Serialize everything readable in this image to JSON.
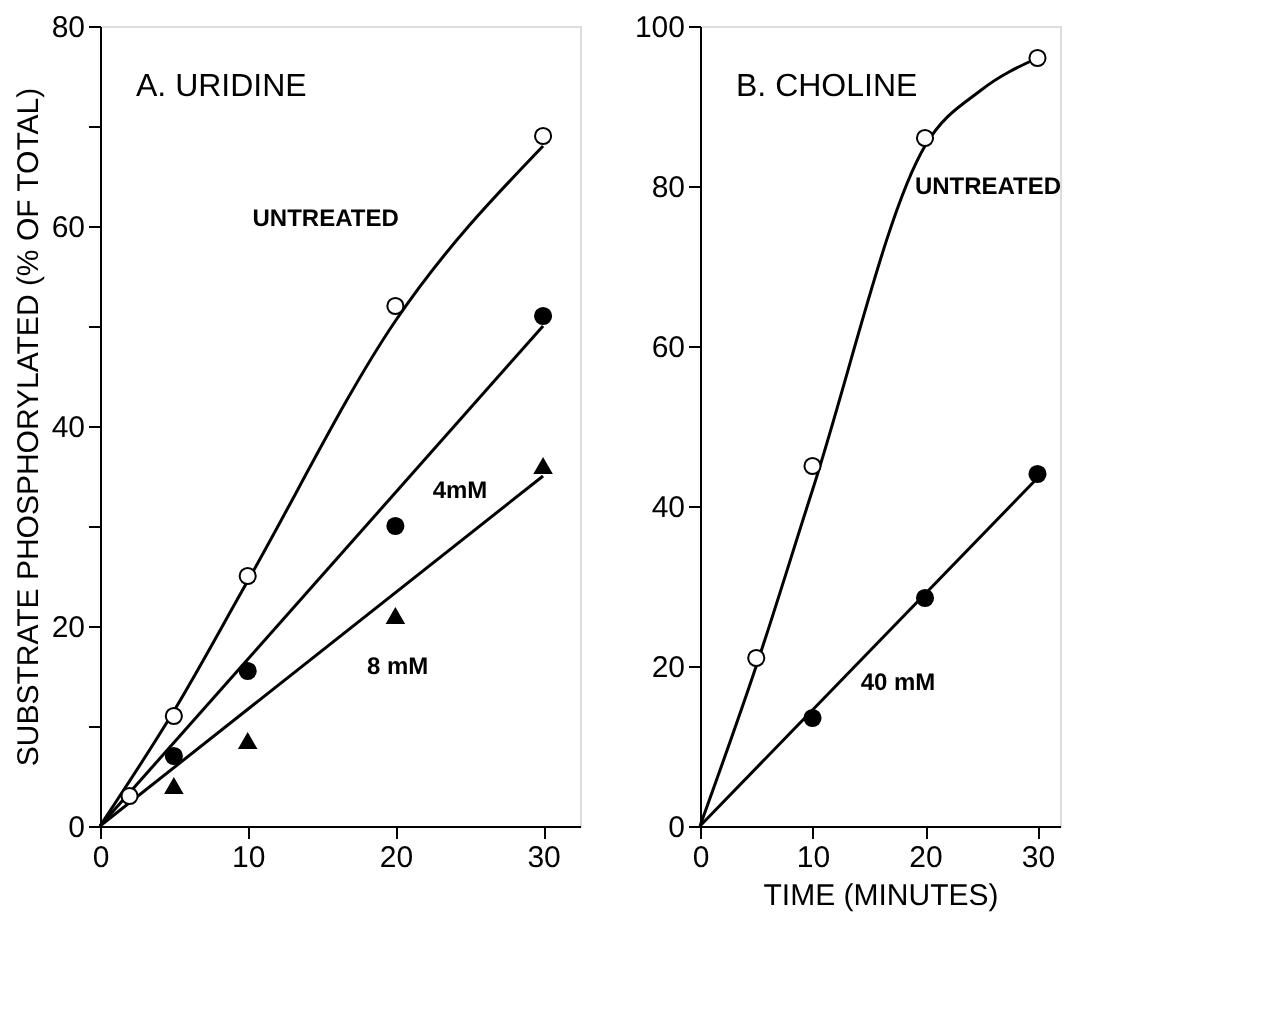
{
  "chart_data": [
    {
      "type": "scatter",
      "title": "A. URIDINE",
      "ylabel": "SUBSTRATE PHOSPHORYLATED (% OF TOTAL)",
      "xlim": [
        0,
        32.5
      ],
      "xticks": [
        0,
        10,
        20,
        30
      ],
      "ylim": [
        0,
        80
      ],
      "yticks": [
        0,
        {
          "value": 10,
          "label": null
        },
        20,
        {
          "value": 30,
          "label": null
        },
        40,
        {
          "value": 50,
          "label": null
        },
        60,
        {
          "value": 70,
          "label": null
        },
        80
      ],
      "grid": false,
      "legend": false,
      "series": [
        {
          "type": "line",
          "name": "UNTREATED",
          "color": "#000000",
          "x": [
            0,
            5,
            10,
            20,
            30
          ],
          "values": [
            0,
            11.5,
            24.5,
            50.5,
            68
          ],
          "marker": "none",
          "line_style": "solid"
        },
        {
          "type": "line",
          "name": "4mM",
          "color": "#000000",
          "x": [
            0,
            30
          ],
          "values": [
            0,
            50
          ],
          "marker": "none",
          "line_style": "solid"
        },
        {
          "type": "line",
          "name": "8 mM",
          "color": "#000000",
          "x": [
            0,
            30
          ],
          "values": [
            0,
            35
          ],
          "marker": "none",
          "line_style": "solid"
        },
        {
          "type": "scatter",
          "color": "#ffffff",
          "x": [
            2,
            5,
            10,
            20,
            30
          ],
          "values": [
            3,
            11,
            25,
            52,
            69
          ],
          "marker": "circle"
        },
        {
          "type": "scatter",
          "color": "#000000",
          "x": [
            5,
            10,
            20,
            30
          ],
          "values": [
            7,
            15.5,
            30,
            51
          ],
          "marker": "circle"
        },
        {
          "type": "scatter",
          "color": "#000000",
          "x": [
            5,
            10,
            20,
            30
          ],
          "values": [
            4,
            8.5,
            21,
            36
          ],
          "marker": "triangle"
        }
      ]
    },
    {
      "type": "scatter",
      "title": "B. CHOLINE",
      "xlabel": "TIME (MINUTES)",
      "xlim": [
        0,
        32
      ],
      "xticks": [
        0,
        10,
        20,
        30
      ],
      "ylim": [
        0,
        100
      ],
      "yticks": [
        0,
        20,
        40,
        60,
        80,
        100
      ],
      "grid": false,
      "legend": false,
      "series": [
        {
          "type": "line",
          "name": "UNTREATED",
          "color": "#000000",
          "x": [
            0,
            5,
            10,
            20,
            25,
            30
          ],
          "values": [
            0,
            20,
            42,
            85,
            92,
            96
          ],
          "marker": "none",
          "line_style": "solid"
        },
        {
          "type": "line",
          "name": "40 mM",
          "color": "#000000",
          "x": [
            0,
            30
          ],
          "values": [
            0,
            43.5
          ],
          "marker": "none",
          "line_style": "solid"
        },
        {
          "type": "scatter",
          "color": "#ffffff",
          "x": [
            5,
            10,
            20,
            30
          ],
          "values": [
            21,
            45,
            86,
            96
          ],
          "marker": "circle"
        },
        {
          "type": "scatter",
          "color": "#000000",
          "x": [
            10,
            20,
            30
          ],
          "values": [
            13.5,
            28.5,
            44
          ],
          "marker": "circle"
        }
      ]
    }
  ]
}
